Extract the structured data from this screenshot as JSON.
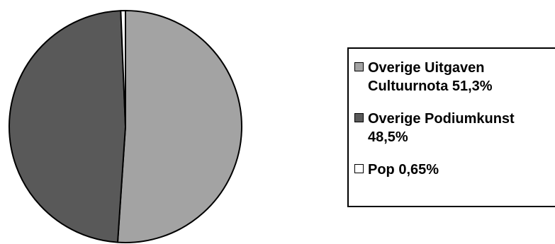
{
  "chart_data": {
    "type": "pie",
    "title": "",
    "slices": [
      {
        "label": "Overige Uitgaven Cultuurnota 51,3%",
        "value": 51.3,
        "color": "#a3a3a3"
      },
      {
        "label": "Overige Podiumkunst 48,5%",
        "value": 48.5,
        "color": "#595959"
      },
      {
        "label": "Pop 0,65%",
        "value": 0.65,
        "color": "#ffffff"
      }
    ],
    "start_angle_deg": 0,
    "direction": "clockwise",
    "legend_position": "right"
  },
  "legend": {
    "items": [
      {
        "text": "Overige Uitgaven\nCultuurnota 51,3%",
        "color": "#a3a3a3"
      },
      {
        "text": "Overige Podiumkunst\n48,5%",
        "color": "#595959"
      },
      {
        "text": "Pop 0,65%",
        "color": "#ffffff"
      }
    ]
  }
}
